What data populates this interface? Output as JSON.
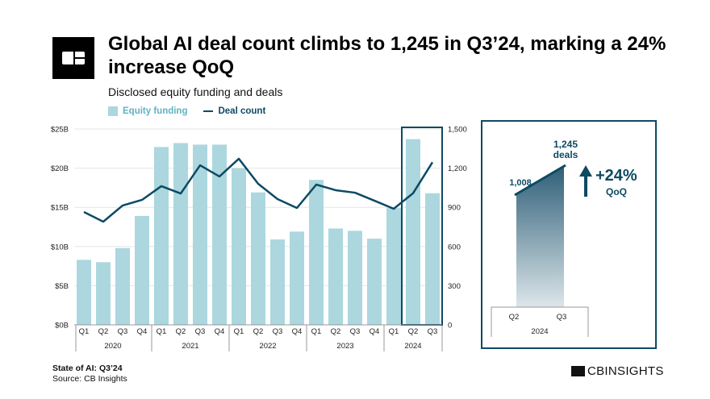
{
  "header": {
    "title": "Global AI deal count climbs to 1,245 in Q3’24, marking a 24% increase QoQ",
    "subtitle": "Disclosed equity funding and deals",
    "logo": "CB Insights logo"
  },
  "footer": {
    "report": "State of AI: Q3’24",
    "source": "Source: CB Insights",
    "brand": "CBINSIGHTS"
  },
  "colors": {
    "bar": "#acd7df",
    "line": "#0d4a63",
    "legend_bar_text": "#5fb3c4"
  },
  "chart_data": [
    {
      "type": "bar+line",
      "legend": [
        "Equity funding",
        "Deal count"
      ],
      "legend_placement": "top-left",
      "categories": [
        "Q1",
        "Q2",
        "Q3",
        "Q4",
        "Q1",
        "Q2",
        "Q3",
        "Q4",
        "Q1",
        "Q2",
        "Q3",
        "Q4",
        "Q1",
        "Q2",
        "Q3",
        "Q4",
        "Q1",
        "Q2",
        "Q3"
      ],
      "years": [
        "2020",
        "2021",
        "2022",
        "2023",
        "2024"
      ],
      "year_counts": [
        4,
        4,
        4,
        4,
        3
      ],
      "series": [
        {
          "name": "Equity funding",
          "axis": "left",
          "unit": "$B",
          "values": [
            8.3,
            8.0,
            9.8,
            13.9,
            22.7,
            23.2,
            23.0,
            23.0,
            20.0,
            16.9,
            10.9,
            11.9,
            18.5,
            12.3,
            12.0,
            11.0,
            14.9,
            23.7,
            16.8
          ]
        },
        {
          "name": "Deal count",
          "axis": "right",
          "values": [
            864,
            790,
            914,
            957,
            1062,
            1006,
            1222,
            1136,
            1272,
            1080,
            963,
            895,
            1074,
            1031,
            1012,
            951,
            889,
            1008,
            1245
          ]
        }
      ],
      "left_axis": {
        "range": [
          0,
          25
        ],
        "ticks": [
          "$0B",
          "$5B",
          "$10B",
          "$15B",
          "$20B",
          "$25B"
        ]
      },
      "right_axis": {
        "range": [
          0,
          1500
        ],
        "ticks": [
          "0",
          "300",
          "600",
          "900",
          "1,200",
          "1,500"
        ]
      },
      "grid": true,
      "highlight": "2024 Q2–Q3"
    },
    {
      "type": "area",
      "categories": [
        "Q2",
        "Q3"
      ],
      "year": "2024",
      "values": [
        1008,
        1245
      ],
      "labels": [
        "1,008",
        "1,245"
      ],
      "label_suffix": "deals",
      "change": "+24%",
      "change_label": "QoQ"
    }
  ]
}
